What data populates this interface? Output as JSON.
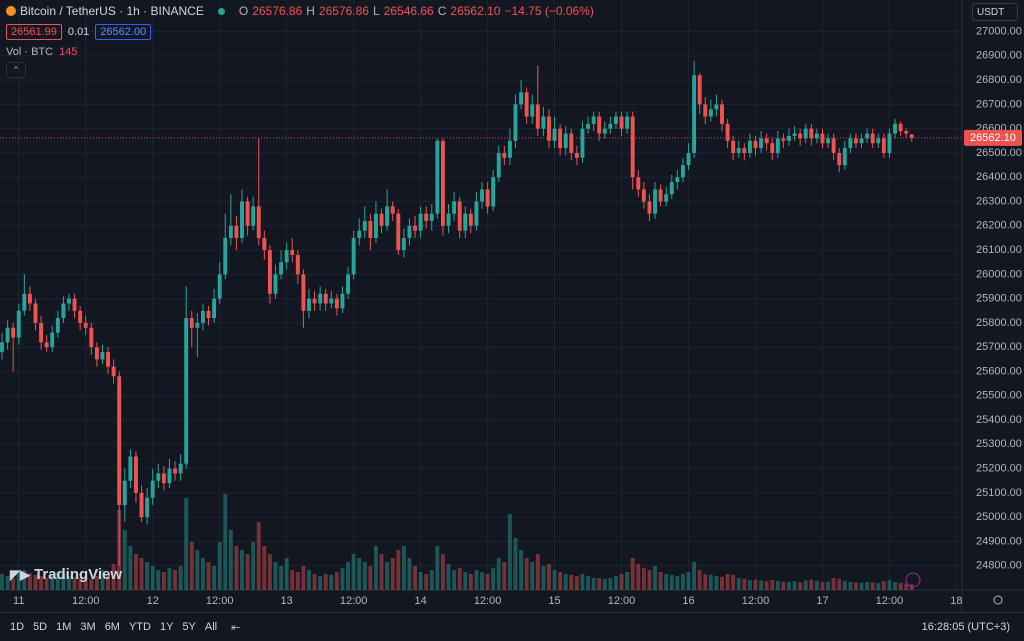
{
  "header": {
    "symbol": "Bitcoin / TetherUS · 1h · BINANCE",
    "o_label": "O",
    "open": "26576.86",
    "h_label": "H",
    "high": "26576.86",
    "l_label": "L",
    "low": "26546.66",
    "c_label": "C",
    "close": "26562.10",
    "change": "−14.75 (−0.06%)",
    "sell": "26561.99",
    "spread": "0.01",
    "buy": "26562.00",
    "volume_label": "Vol · BTC",
    "currency": "USDT"
  },
  "logo": "TradingView",
  "ranges": [
    "1D",
    "5D",
    "1M",
    "3M",
    "6M",
    "YTD",
    "1Y",
    "5Y",
    "All"
  ],
  "clock": "16:28:05 (UTC+3)",
  "chart_data": {
    "type": "candlestick",
    "open": [
      25680,
      25720,
      25780,
      25740,
      25850,
      25920,
      25880,
      25800,
      25720,
      25700,
      25760,
      25820,
      25880,
      25900,
      25850,
      25800,
      25780,
      25700,
      25650,
      25680,
      25620,
      25580,
      25050,
      25150,
      25250,
      25100,
      25000,
      25080,
      25150,
      25180,
      25140,
      25200,
      25180,
      25220,
      25820,
      25780,
      25800,
      25850,
      25820,
      25900,
      26000,
      26150,
      26200,
      26150,
      26300,
      26200,
      26280,
      26150,
      26100,
      25920,
      26000,
      26050,
      26100,
      26080,
      26000,
      25850,
      25900,
      25880,
      25920,
      25880,
      25900,
      25860,
      25920,
      26000,
      26150,
      26180,
      26220,
      26150,
      26250,
      26200,
      26280,
      26250,
      26100,
      26150,
      26200,
      26180,
      26250,
      26220,
      26250,
      26550,
      26200,
      26250,
      26300,
      26180,
      26250,
      26200,
      26300,
      26350,
      26280,
      26400,
      26500,
      26480,
      26550,
      26700,
      26750,
      26650,
      26700,
      26600,
      26650,
      26550,
      26600,
      26520,
      26580,
      26500,
      26480,
      26600,
      26620,
      26650,
      26580,
      26600,
      26620,
      26650,
      26600,
      26650,
      26400,
      26350,
      26300,
      26250,
      26350,
      26300,
      26330,
      26380,
      26400,
      26450,
      26500,
      26820,
      26700,
      26650,
      26680,
      26700,
      26620,
      26550,
      26500,
      26520,
      26500,
      26550,
      26520,
      26560,
      26540,
      26500,
      26560,
      26550,
      26570,
      26580,
      26560,
      26600,
      26560,
      26580,
      26540,
      26560,
      26500,
      26450,
      26520,
      26560,
      26540,
      26560,
      26580,
      26540,
      26560,
      26500,
      26580,
      26620,
      26590,
      26576.86
    ],
    "high": [
      25760,
      25810,
      25800,
      25880,
      26000,
      25950,
      25900,
      25830,
      25750,
      25790,
      25850,
      25910,
      25920,
      25920,
      25870,
      25830,
      25800,
      25720,
      25710,
      25700,
      25650,
      25600,
      25200,
      25280,
      25270,
      25130,
      25120,
      25200,
      25220,
      25210,
      25240,
      25230,
      25260,
      25950,
      25850,
      25840,
      25880,
      25870,
      25940,
      26050,
      26250,
      26330,
      26240,
      26350,
      26320,
      26320,
      26560,
      26180,
      26120,
      26040,
      26100,
      26130,
      26150,
      26100,
      26020,
      25940,
      25930,
      25950,
      25940,
      25930,
      25920,
      25950,
      26030,
      26180,
      26230,
      26280,
      26250,
      26300,
      26270,
      26350,
      26300,
      26270,
      26190,
      26230,
      26240,
      26280,
      26280,
      26290,
      26560,
      26560,
      26290,
      26340,
      26320,
      26280,
      26270,
      26340,
      26380,
      26380,
      26430,
      26530,
      26530,
      26600,
      26740,
      26800,
      26770,
      26740,
      26860,
      26690,
      26680,
      26650,
      26620,
      26610,
      26600,
      26530,
      26630,
      26650,
      26670,
      26670,
      26630,
      26650,
      26670,
      26670,
      26670,
      26670,
      26430,
      26380,
      26330,
      26380,
      26370,
      26360,
      26410,
      26430,
      26480,
      26540,
      26880,
      26830,
      26730,
      26720,
      26740,
      26720,
      26640,
      26570,
      26550,
      26540,
      26580,
      26570,
      26590,
      26580,
      26560,
      26590,
      26580,
      26600,
      26610,
      26600,
      26620,
      26620,
      26600,
      26600,
      26580,
      26580,
      26520,
      26550,
      26580,
      26580,
      26580,
      26600,
      26600,
      26580,
      26580,
      26600,
      26640,
      26630,
      26600,
      26576.86
    ],
    "low": [
      25650,
      25690,
      25600,
      25710,
      25830,
      25850,
      25770,
      25690,
      25680,
      25680,
      25740,
      25800,
      25850,
      25820,
      25770,
      25750,
      25670,
      25620,
      25630,
      25590,
      25550,
      24800,
      24980,
      25120,
      25060,
      24980,
      24970,
      25050,
      25120,
      25110,
      25120,
      25150,
      25150,
      25200,
      25700,
      25660,
      25770,
      25790,
      25800,
      25880,
      25980,
      26120,
      26100,
      26130,
      26160,
      26180,
      26120,
      26060,
      25880,
      25900,
      25980,
      26020,
      26050,
      25960,
      25780,
      25820,
      25850,
      25850,
      25850,
      25860,
      25830,
      25840,
      25900,
      25980,
      26120,
      26150,
      26100,
      26130,
      26170,
      26180,
      26220,
      26080,
      26070,
      26120,
      26150,
      26150,
      26190,
      26180,
      26230,
      26160,
      26170,
      26220,
      26150,
      26150,
      26170,
      26180,
      26270,
      26250,
      26260,
      26380,
      26450,
      26450,
      26520,
      26680,
      26620,
      26620,
      26570,
      26570,
      26520,
      26520,
      26490,
      26490,
      26470,
      26450,
      26460,
      26580,
      26590,
      26550,
      26560,
      26580,
      26600,
      26570,
      26580,
      26350,
      26320,
      26270,
      26220,
      26230,
      26280,
      26280,
      26310,
      26350,
      26380,
      26430,
      26480,
      26660,
      26620,
      26630,
      26650,
      26590,
      26520,
      26470,
      26480,
      26470,
      26480,
      26490,
      26500,
      26510,
      26470,
      26480,
      26520,
      26530,
      26550,
      26530,
      26540,
      26530,
      26540,
      26520,
      26520,
      26470,
      26420,
      26430,
      26500,
      26520,
      26520,
      26540,
      26520,
      26520,
      26480,
      26480,
      26560,
      26570,
      26560,
      26546.66
    ],
    "close": [
      25720,
      25780,
      25740,
      25850,
      25920,
      25880,
      25800,
      25720,
      25700,
      25760,
      25820,
      25880,
      25900,
      25850,
      25800,
      25780,
      25700,
      25650,
      25680,
      25620,
      25580,
      25050,
      25150,
      25250,
      25100,
      25000,
      25080,
      25150,
      25180,
      25140,
      25200,
      25180,
      25220,
      25820,
      25780,
      25800,
      25850,
      25820,
      25900,
      26000,
      26150,
      26200,
      26150,
      26300,
      26200,
      26280,
      26150,
      26100,
      25920,
      26000,
      26050,
      26100,
      26080,
      26000,
      25850,
      25900,
      25880,
      25920,
      25880,
      25900,
      25860,
      25920,
      26000,
      26150,
      26180,
      26220,
      26150,
      26250,
      26200,
      26280,
      26250,
      26100,
      26150,
      26200,
      26180,
      26250,
      26220,
      26250,
      26550,
      26200,
      26250,
      26300,
      26180,
      26250,
      26200,
      26300,
      26350,
      26280,
      26400,
      26500,
      26480,
      26550,
      26700,
      26750,
      26650,
      26700,
      26600,
      26650,
      26550,
      26600,
      26520,
      26580,
      26500,
      26480,
      26600,
      26620,
      26650,
      26580,
      26600,
      26620,
      26650,
      26600,
      26650,
      26400,
      26350,
      26300,
      26250,
      26350,
      26300,
      26330,
      26380,
      26400,
      26450,
      26500,
      26820,
      26700,
      26650,
      26680,
      26700,
      26620,
      26550,
      26500,
      26520,
      26500,
      26550,
      26520,
      26560,
      26540,
      26500,
      26560,
      26550,
      26570,
      26580,
      26560,
      26600,
      26560,
      26580,
      26540,
      26560,
      26500,
      26450,
      26520,
      26560,
      26540,
      26560,
      26580,
      26540,
      26560,
      26500,
      26580,
      26620,
      26590,
      26580,
      26562.1
    ],
    "volume": [
      400,
      350,
      300,
      450,
      500,
      420,
      380,
      350,
      300,
      380,
      450,
      400,
      350,
      330,
      300,
      320,
      280,
      350,
      500,
      400,
      650,
      2000,
      1500,
      1100,
      900,
      800,
      700,
      600,
      500,
      450,
      550,
      500,
      600,
      2300,
      1200,
      1000,
      800,
      700,
      600,
      1200,
      2400,
      1500,
      1100,
      1000,
      900,
      1200,
      1700,
      1100,
      900,
      700,
      600,
      800,
      500,
      450,
      600,
      500,
      400,
      350,
      400,
      380,
      450,
      550,
      700,
      900,
      800,
      700,
      600,
      1100,
      900,
      700,
      800,
      1000,
      1100,
      800,
      600,
      450,
      400,
      500,
      1100,
      900,
      650,
      500,
      550,
      450,
      400,
      500,
      450,
      400,
      550,
      800,
      700,
      1900,
      1300,
      1000,
      800,
      700,
      900,
      600,
      650,
      500,
      450,
      400,
      380,
      350,
      400,
      350,
      300,
      300,
      280,
      300,
      350,
      400,
      450,
      800,
      650,
      550,
      500,
      600,
      450,
      400,
      380,
      350,
      400,
      450,
      700,
      500,
      400,
      380,
      350,
      330,
      400,
      380,
      300,
      280,
      250,
      260,
      240,
      220,
      250,
      230,
      210,
      200,
      220,
      190,
      240,
      260,
      230,
      200,
      210,
      300,
      280,
      230,
      200,
      190,
      180,
      200,
      190,
      170,
      220,
      240,
      200,
      180,
      160,
      145
    ],
    "up_color": "#26a69a",
    "down_color": "#ef5350",
    "ylim": [
      24700,
      27130
    ],
    "yticks": [
      {
        "value": 24800,
        "label": "24800.00"
      },
      {
        "value": 24900,
        "label": "24900.00"
      },
      {
        "value": 25000,
        "label": "25000.00"
      },
      {
        "value": 25100,
        "label": "25100.00"
      },
      {
        "value": 25200,
        "label": "25200.00"
      },
      {
        "value": 25300,
        "label": "25300.00"
      },
      {
        "value": 25400,
        "label": "25400.00"
      },
      {
        "value": 25500,
        "label": "25500.00"
      },
      {
        "value": 25600,
        "label": "25600.00"
      },
      {
        "value": 25700,
        "label": "25700.00"
      },
      {
        "value": 25800,
        "label": "25800.00"
      },
      {
        "value": 25900,
        "label": "25900.00"
      },
      {
        "value": 26000,
        "label": "26000.00"
      },
      {
        "value": 26100,
        "label": "26100.00"
      },
      {
        "value": 26200,
        "label": "26200.00"
      },
      {
        "value": 26300,
        "label": "26300.00"
      },
      {
        "value": 26400,
        "label": "26400.00"
      },
      {
        "value": 26500,
        "label": "26500.00"
      },
      {
        "value": 26600,
        "label": "26600.00"
      },
      {
        "value": 26700,
        "label": "26700.00"
      },
      {
        "value": 26800,
        "label": "26800.00"
      },
      {
        "value": 26900,
        "label": "26900.00"
      },
      {
        "value": 27000,
        "label": "27000.00"
      }
    ],
    "xlim": [
      -0.36,
      172
    ],
    "xticks": [
      {
        "value": 3,
        "label": "11"
      },
      {
        "value": 15,
        "label": "12:00"
      },
      {
        "value": 27,
        "label": "12"
      },
      {
        "value": 39,
        "label": "12:00"
      },
      {
        "value": 51,
        "label": "13"
      },
      {
        "value": 63,
        "label": "12:00"
      },
      {
        "value": 75,
        "label": "14"
      },
      {
        "value": 87,
        "label": "12:00"
      },
      {
        "value": 99,
        "label": "15"
      },
      {
        "value": 111,
        "label": "12:00"
      },
      {
        "value": 123,
        "label": "16"
      },
      {
        "value": 135,
        "label": "12:00"
      },
      {
        "value": 147,
        "label": "17"
      },
      {
        "value": 159,
        "label": "12:00"
      },
      {
        "value": 171,
        "label": "18"
      }
    ],
    "last_price": {
      "value": 26562.1,
      "label": "26562.10"
    },
    "grid": true
  }
}
